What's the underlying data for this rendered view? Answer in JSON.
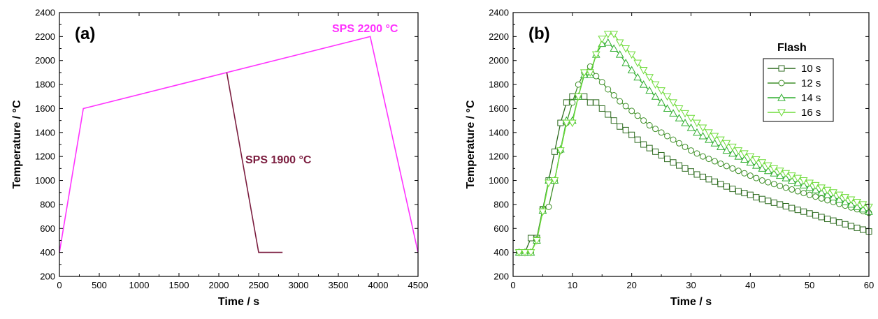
{
  "chart_data": [
    {
      "type": "line",
      "panel_label": "(a)",
      "xlabel": "Time / s",
      "ylabel": "Temperature / °C",
      "xlim": [
        0,
        4500
      ],
      "ylim": [
        200,
        2400
      ],
      "xticks": [
        0,
        500,
        1000,
        1500,
        2000,
        2500,
        3000,
        3500,
        4000,
        4500
      ],
      "yticks": [
        200,
        400,
        600,
        800,
        1000,
        1200,
        1400,
        1600,
        1800,
        2000,
        2200,
        2400
      ],
      "grid": false,
      "series": [
        {
          "name": "SPS 2200 °C",
          "color": "#ff33ff",
          "x": [
            0,
            300,
            3900,
            4500
          ],
          "y": [
            400,
            1600,
            2200,
            400
          ]
        },
        {
          "name": "SPS 1900 °C",
          "color": "#7b1d3f",
          "x": [
            2100,
            2500,
            2800
          ],
          "y": [
            1900,
            400,
            400
          ]
        }
      ]
    },
    {
      "type": "line",
      "panel_label": "(b)",
      "xlabel": "Time / s",
      "ylabel": "Temperature / °C",
      "xlim": [
        0,
        60
      ],
      "ylim": [
        200,
        2400
      ],
      "xticks": [
        0,
        10,
        20,
        30,
        40,
        50,
        60
      ],
      "yticks": [
        200,
        400,
        600,
        800,
        1000,
        1200,
        1400,
        1600,
        1800,
        2000,
        2200,
        2400
      ],
      "grid": false,
      "legend_title": "Flash",
      "legend_position": "top-right",
      "series": [
        {
          "name": "10 s",
          "color": "#2d6a1f",
          "marker": "square",
          "x": [
            1,
            2,
            3,
            4,
            5,
            6,
            7,
            8,
            9,
            10,
            11,
            12,
            13,
            14,
            15,
            16,
            17,
            18,
            19,
            20,
            21,
            22,
            23,
            24,
            25,
            26,
            27,
            28,
            29,
            30,
            31,
            32,
            33,
            34,
            35,
            36,
            37,
            38,
            39,
            40,
            41,
            42,
            43,
            44,
            45,
            46,
            47,
            48,
            49,
            50,
            51,
            52,
            53,
            54,
            55,
            56,
            57,
            58,
            59,
            60
          ],
          "y": [
            400,
            400,
            520,
            520,
            760,
            1000,
            1240,
            1480,
            1650,
            1700,
            1700,
            1700,
            1650,
            1650,
            1600,
            1550,
            1500,
            1450,
            1420,
            1380,
            1340,
            1300,
            1270,
            1240,
            1210,
            1180,
            1150,
            1125,
            1100,
            1075,
            1050,
            1030,
            1010,
            990,
            970,
            950,
            930,
            910,
            895,
            880,
            860,
            845,
            830,
            815,
            800,
            785,
            770,
            755,
            740,
            725,
            710,
            695,
            680,
            665,
            650,
            635,
            620,
            605,
            590,
            575
          ]
        },
        {
          "name": "12 s",
          "color": "#3f8f28",
          "marker": "circle",
          "x": [
            1,
            2,
            3,
            4,
            5,
            6,
            7,
            8,
            9,
            10,
            11,
            12,
            13,
            14,
            15,
            16,
            17,
            18,
            19,
            20,
            21,
            22,
            23,
            24,
            25,
            26,
            27,
            28,
            29,
            30,
            31,
            32,
            33,
            34,
            35,
            36,
            37,
            38,
            39,
            40,
            41,
            42,
            43,
            44,
            45,
            46,
            47,
            48,
            49,
            50,
            51,
            52,
            53,
            54,
            55,
            56,
            57,
            58,
            59,
            60
          ],
          "y": [
            400,
            400,
            400,
            510,
            760,
            780,
            1000,
            1250,
            1480,
            1650,
            1800,
            1900,
            1950,
            1870,
            1820,
            1760,
            1710,
            1660,
            1620,
            1580,
            1540,
            1500,
            1460,
            1430,
            1400,
            1370,
            1340,
            1310,
            1280,
            1250,
            1225,
            1200,
            1180,
            1160,
            1140,
            1120,
            1100,
            1080,
            1060,
            1040,
            1020,
            1000,
            985,
            970,
            955,
            940,
            925,
            910,
            895,
            880,
            865,
            850,
            835,
            820,
            805,
            790,
            775,
            760,
            745,
            730
          ]
        },
        {
          "name": "14 s",
          "color": "#2fae2f",
          "marker": "triangle-up",
          "x": [
            1,
            2,
            3,
            4,
            5,
            6,
            7,
            8,
            9,
            10,
            11,
            12,
            13,
            14,
            15,
            16,
            17,
            18,
            19,
            20,
            21,
            22,
            23,
            24,
            25,
            26,
            27,
            28,
            29,
            30,
            31,
            32,
            33,
            34,
            35,
            36,
            37,
            38,
            39,
            40,
            41,
            42,
            43,
            44,
            45,
            46,
            47,
            48,
            49,
            50,
            51,
            52,
            53,
            54,
            55,
            56,
            57,
            58,
            59,
            60
          ],
          "y": [
            400,
            400,
            400,
            500,
            750,
            1000,
            1000,
            1260,
            1500,
            1500,
            1700,
            1880,
            1880,
            2050,
            2140,
            2150,
            2100,
            2050,
            1980,
            1920,
            1860,
            1800,
            1750,
            1700,
            1650,
            1600,
            1560,
            1520,
            1480,
            1440,
            1400,
            1370,
            1340,
            1310,
            1280,
            1250,
            1225,
            1200,
            1175,
            1150,
            1125,
            1100,
            1080,
            1060,
            1040,
            1020,
            1000,
            980,
            960,
            940,
            920,
            900,
            880,
            860,
            840,
            820,
            800,
            780,
            760,
            740
          ]
        },
        {
          "name": "16 s",
          "color": "#6fdc3a",
          "marker": "triangle-down",
          "x": [
            1,
            2,
            3,
            4,
            5,
            6,
            7,
            8,
            9,
            10,
            11,
            12,
            13,
            14,
            15,
            16,
            17,
            18,
            19,
            20,
            21,
            22,
            23,
            24,
            25,
            26,
            27,
            28,
            29,
            30,
            31,
            32,
            33,
            34,
            35,
            36,
            37,
            38,
            39,
            40,
            41,
            42,
            43,
            44,
            45,
            46,
            47,
            48,
            49,
            50,
            51,
            52,
            53,
            54,
            55,
            56,
            57,
            58,
            59,
            60
          ],
          "y": [
            400,
            400,
            400,
            500,
            740,
            980,
            1000,
            1250,
            1480,
            1480,
            1700,
            1900,
            1900,
            2050,
            2180,
            2220,
            2220,
            2150,
            2100,
            2050,
            1980,
            1920,
            1860,
            1800,
            1750,
            1700,
            1650,
            1600,
            1560,
            1520,
            1480,
            1440,
            1400,
            1370,
            1340,
            1310,
            1280,
            1250,
            1225,
            1200,
            1175,
            1150,
            1125,
            1100,
            1080,
            1060,
            1040,
            1020,
            1000,
            980,
            960,
            940,
            920,
            900,
            880,
            860,
            840,
            820,
            800,
            780
          ]
        }
      ]
    }
  ]
}
